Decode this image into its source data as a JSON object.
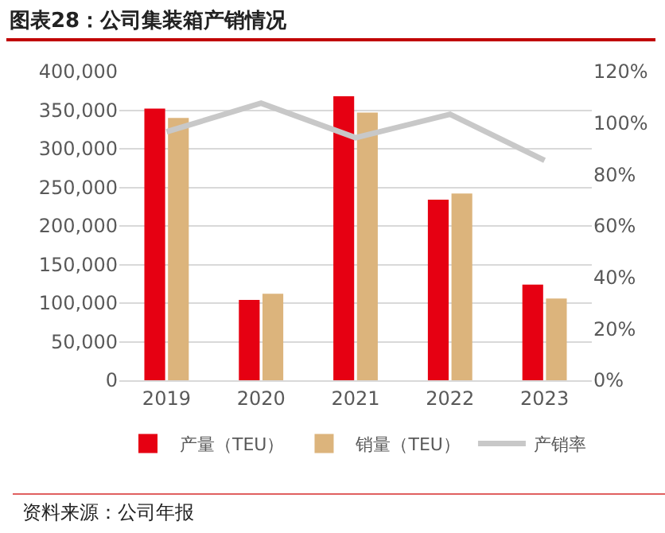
{
  "chart_data": {
    "type": "bar",
    "title": "图表28：公司集装箱产销情况",
    "annotations": [
      "资料来源：公司年报"
    ],
    "categories": [
      "2019",
      "2020",
      "2021",
      "2022",
      "2023"
    ],
    "series": [
      {
        "name": "产量（TEU）",
        "color": "#e60012",
        "values": [
          352000,
          104000,
          368000,
          234000,
          124000
        ]
      },
      {
        "name": "销量（TEU）",
        "color": "#dcb47c",
        "values": [
          340000,
          112000,
          347000,
          242000,
          106000
        ]
      },
      {
        "name": "产销率",
        "type": "line",
        "axis": "y2",
        "color": "#c8c8c8",
        "values": [
          96.6,
          107.7,
          94.3,
          103.4,
          85.5
        ]
      }
    ],
    "ylim": [
      0,
      400000
    ],
    "yticks": [
      {
        "value": 0,
        "label": "0"
      },
      {
        "value": 50000,
        "label": "50,000"
      },
      {
        "value": 100000,
        "label": "100,000"
      },
      {
        "value": 150000,
        "label": "150,000"
      },
      {
        "value": 200000,
        "label": "200,000"
      },
      {
        "value": 250000,
        "label": "250,000"
      },
      {
        "value": 300000,
        "label": "300,000"
      },
      {
        "value": 350000,
        "label": "350,000"
      },
      {
        "value": 400000,
        "label": "400,000"
      }
    ],
    "y2lim": [
      0,
      120
    ],
    "y2ticks": [
      {
        "value": 0,
        "label": "0%"
      },
      {
        "value": 20,
        "label": "20%"
      },
      {
        "value": 40,
        "label": "40%"
      },
      {
        "value": 60,
        "label": "60%"
      },
      {
        "value": 80,
        "label": "80%"
      },
      {
        "value": 100,
        "label": "100%"
      },
      {
        "value": 120,
        "label": "120%"
      }
    ],
    "grid": "y",
    "legend": "bottom",
    "marker": "none"
  }
}
